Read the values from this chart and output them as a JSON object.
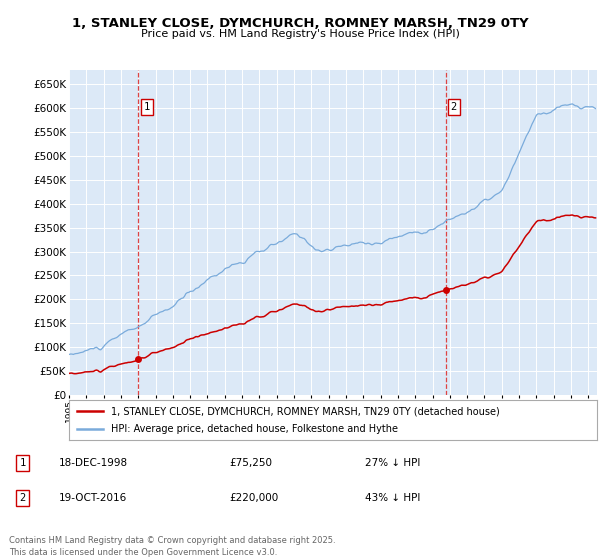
{
  "title": "1, STANLEY CLOSE, DYMCHURCH, ROMNEY MARSH, TN29 0TY",
  "subtitle": "Price paid vs. HM Land Registry's House Price Index (HPI)",
  "background_color": "#ffffff",
  "plot_bg_color": "#dce9f7",
  "grid_color": "#ffffff",
  "ylim": [
    0,
    680000
  ],
  "yticks": [
    0,
    50000,
    100000,
    150000,
    200000,
    250000,
    300000,
    350000,
    400000,
    450000,
    500000,
    550000,
    600000,
    650000
  ],
  "sale1_year": 1998.96,
  "sale1_price": 75250,
  "sale2_year": 2016.79,
  "sale2_price": 220000,
  "sale1_hpi_diff": "27% ↓ HPI",
  "sale2_hpi_diff": "43% ↓ HPI",
  "sale1_date": "18-DEC-1998",
  "sale2_date": "19-OCT-2016",
  "legend_red": "1, STANLEY CLOSE, DYMCHURCH, ROMNEY MARSH, TN29 0TY (detached house)",
  "legend_blue": "HPI: Average price, detached house, Folkestone and Hythe",
  "footer": "Contains HM Land Registry data © Crown copyright and database right 2025.\nThis data is licensed under the Open Government Licence v3.0.",
  "red_color": "#cc0000",
  "blue_color": "#7aabdb",
  "dashed_color": "#dd4444",
  "xstart": 1995,
  "xend": 2025.5
}
